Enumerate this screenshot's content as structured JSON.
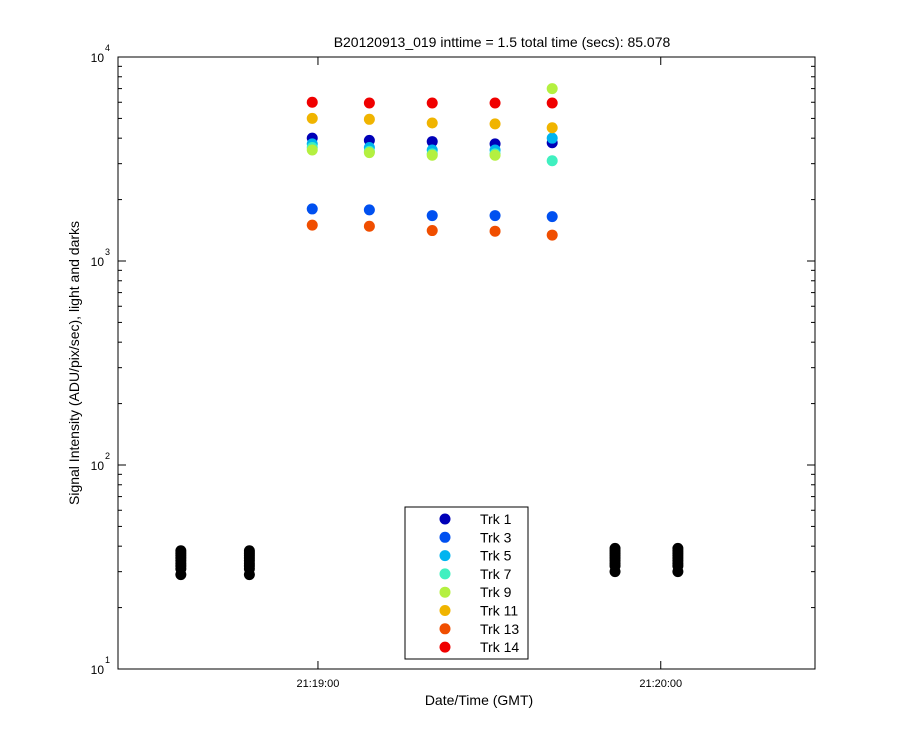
{
  "chart_data": {
    "type": "scatter",
    "title": "B20120913_019 inttime = 1.5 total time (secs): 85.078",
    "xlabel": "Date/Time (GMT)",
    "ylabel": "Signal Intensity (ADU/pix/sec), light and darks",
    "yscale": "log",
    "ylim": [
      10,
      10000
    ],
    "xlim": [
      "21:18:25",
      "21:20:27"
    ],
    "xticks": [
      {
        "t": "21:19:00",
        "label": "21:19:00"
      },
      {
        "t": "21:20:00",
        "label": "21:20:00"
      }
    ],
    "yticks": [
      {
        "value": 10,
        "base": "10",
        "exp": "1"
      },
      {
        "value": 100,
        "base": "10",
        "exp": "2"
      },
      {
        "value": 1000,
        "base": "10",
        "exp": "3"
      },
      {
        "value": 10000,
        "base": "10",
        "exp": "4"
      }
    ],
    "grid": false,
    "legend_position": "bottom-center",
    "light_times": [
      "21:18:59",
      "21:19:09",
      "21:19:20",
      "21:19:31",
      "21:19:41"
    ],
    "series": [
      {
        "name": "Trk 1",
        "color": "#0000b8",
        "values": [
          4000,
          3900,
          3850,
          3750,
          3800
        ]
      },
      {
        "name": "Trk 3",
        "color": "#0050f0",
        "values": [
          1800,
          1780,
          1670,
          1670,
          1650
        ]
      },
      {
        "name": "Trk 5",
        "color": "#00b4f0",
        "values": [
          3750,
          3600,
          3500,
          3500,
          4000
        ]
      },
      {
        "name": "Trk 7",
        "color": "#40f0c0",
        "values": [
          3600,
          3450,
          3350,
          3350,
          3100
        ]
      },
      {
        "name": "Trk 9",
        "color": "#b4f040",
        "values": [
          3500,
          3400,
          3300,
          3300,
          7000
        ]
      },
      {
        "name": "Trk 11",
        "color": "#f0b400",
        "values": [
          5000,
          4950,
          4750,
          4700,
          4500
        ]
      },
      {
        "name": "Trk 13",
        "color": "#f04e00",
        "values": [
          1500,
          1480,
          1410,
          1400,
          1340
        ]
      },
      {
        "name": "Trk 14",
        "color": "#f00000",
        "values": [
          6000,
          5950,
          5950,
          5950,
          5950
        ]
      }
    ],
    "darks": {
      "color": "#000000",
      "groups": [
        {
          "t": "21:18:36",
          "values": [
            29,
            31,
            32,
            33,
            34,
            35,
            36,
            37,
            38
          ]
        },
        {
          "t": "21:18:48",
          "values": [
            29,
            31,
            32,
            33,
            34,
            35,
            36,
            37,
            38
          ]
        },
        {
          "t": "21:19:52",
          "values": [
            30,
            32,
            33,
            34,
            35,
            36,
            37,
            38,
            39
          ]
        },
        {
          "t": "21:20:03",
          "values": [
            30,
            32,
            33,
            34,
            35,
            36,
            37,
            38,
            39
          ]
        }
      ]
    }
  }
}
